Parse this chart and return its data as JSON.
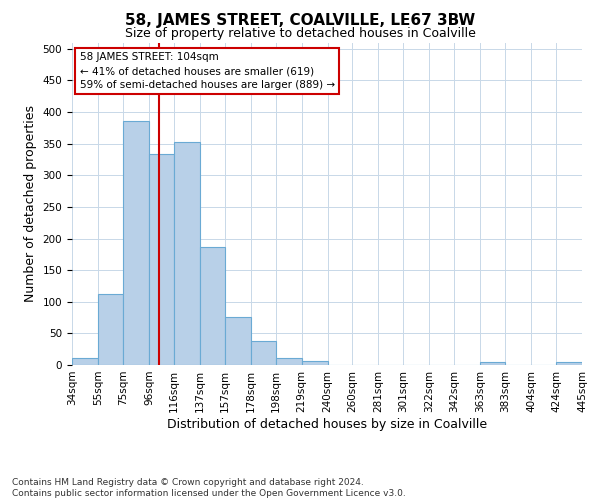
{
  "title": "58, JAMES STREET, COALVILLE, LE67 3BW",
  "subtitle": "Size of property relative to detached houses in Coalville",
  "xlabel": "Distribution of detached houses by size in Coalville",
  "ylabel": "Number of detached properties",
  "bar_color": "#b8d0e8",
  "bar_edge_color": "#6aaad4",
  "background_color": "#ffffff",
  "grid_color": "#c8d8e8",
  "red_line_x": 104,
  "annotation_line1": "58 JAMES STREET: 104sqm",
  "annotation_line2": "← 41% of detached houses are smaller (619)",
  "annotation_line3": "59% of semi-detached houses are larger (889) →",
  "annotation_box_color": "#ffffff",
  "annotation_box_edge": "#cc0000",
  "footnote": "Contains HM Land Registry data © Crown copyright and database right 2024.\nContains public sector information licensed under the Open Government Licence v3.0.",
  "bin_edges": [
    34,
    55,
    75,
    96,
    116,
    137,
    157,
    178,
    198,
    219,
    240,
    260,
    281,
    301,
    322,
    342,
    363,
    383,
    404,
    424,
    445
  ],
  "bar_heights": [
    11,
    112,
    386,
    334,
    353,
    186,
    76,
    38,
    11,
    6,
    0,
    0,
    0,
    0,
    0,
    0,
    5,
    0,
    0,
    4
  ],
  "tick_labels": [
    "34sqm",
    "55sqm",
    "75sqm",
    "96sqm",
    "116sqm",
    "137sqm",
    "157sqm",
    "178sqm",
    "198sqm",
    "219sqm",
    "240sqm",
    "260sqm",
    "281sqm",
    "301sqm",
    "322sqm",
    "342sqm",
    "363sqm",
    "383sqm",
    "404sqm",
    "424sqm",
    "445sqm"
  ],
  "ylim": [
    0,
    510
  ],
  "yticks": [
    0,
    50,
    100,
    150,
    200,
    250,
    300,
    350,
    400,
    450,
    500
  ],
  "title_fontsize": 11,
  "subtitle_fontsize": 9,
  "ylabel_fontsize": 9,
  "xlabel_fontsize": 9,
  "footnote_fontsize": 6.5,
  "tick_fontsize": 7.5
}
